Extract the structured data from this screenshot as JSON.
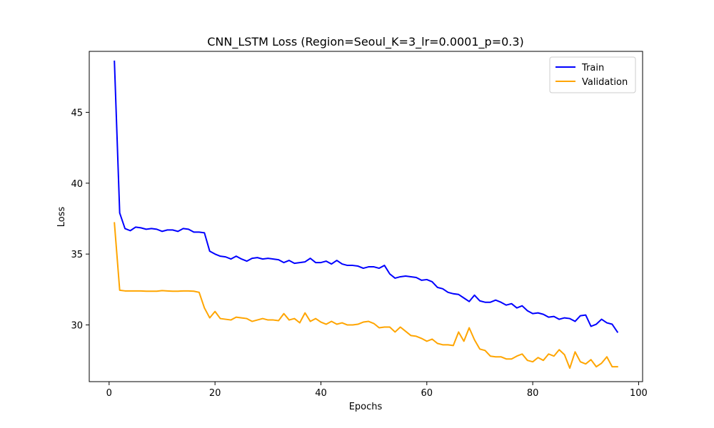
{
  "chart_data": {
    "type": "line",
    "title": "CNN_LSTM Loss (Region=Seoul_K=3_lr=0.0001_p=0.3)",
    "xlabel": "Epochs",
    "ylabel": "Loss",
    "xlim": [
      -3.75,
      100.75
    ],
    "ylim": [
      26.0,
      49.3
    ],
    "xticks": [
      0,
      20,
      40,
      60,
      80,
      100
    ],
    "yticks": [
      30,
      35,
      40,
      45
    ],
    "grid": false,
    "legend_position": "top-right",
    "x": [
      1,
      2,
      3,
      4,
      5,
      6,
      7,
      8,
      9,
      10,
      11,
      12,
      13,
      14,
      15,
      16,
      17,
      18,
      19,
      20,
      21,
      22,
      23,
      24,
      25,
      26,
      27,
      28,
      29,
      30,
      31,
      32,
      33,
      34,
      35,
      36,
      37,
      38,
      39,
      40,
      41,
      42,
      43,
      44,
      45,
      46,
      47,
      48,
      49,
      50,
      51,
      52,
      53,
      54,
      55,
      56,
      57,
      58,
      59,
      60,
      61,
      62,
      63,
      64,
      65,
      66,
      67,
      68,
      69,
      70,
      71,
      72,
      73,
      74,
      75,
      76,
      77,
      78,
      79,
      80,
      81,
      82,
      83,
      84,
      85,
      86,
      87,
      88,
      89,
      90,
      91,
      92,
      93,
      94,
      95,
      96
    ],
    "series": [
      {
        "name": "Train",
        "color": "#0000ff",
        "values": [
          48.6,
          37.9,
          36.8,
          36.65,
          36.9,
          36.85,
          36.75,
          36.8,
          36.75,
          36.6,
          36.7,
          36.7,
          36.6,
          36.8,
          36.75,
          36.55,
          36.55,
          36.5,
          35.2,
          35.0,
          34.85,
          34.8,
          34.65,
          34.85,
          34.65,
          34.5,
          34.7,
          34.75,
          34.65,
          34.7,
          34.65,
          34.6,
          34.4,
          34.55,
          34.35,
          34.4,
          34.45,
          34.7,
          34.4,
          34.4,
          34.5,
          34.3,
          34.55,
          34.3,
          34.2,
          34.2,
          34.15,
          34.0,
          34.1,
          34.1,
          34.0,
          34.2,
          33.6,
          33.3,
          33.4,
          33.45,
          33.4,
          33.35,
          33.15,
          33.2,
          33.05,
          32.65,
          32.55,
          32.3,
          32.2,
          32.15,
          31.9,
          31.65,
          32.1,
          31.7,
          31.6,
          31.6,
          31.75,
          31.6,
          31.4,
          31.5,
          31.2,
          31.35,
          31.0,
          30.8,
          30.85,
          30.75,
          30.55,
          30.6,
          30.4,
          30.5,
          30.45,
          30.25,
          30.65,
          30.7,
          29.9,
          30.05,
          30.4,
          30.15,
          30.05,
          29.5
        ]
      },
      {
        "name": "Validation",
        "color": "#ffa500",
        "values": [
          37.2,
          32.45,
          32.4,
          32.4,
          32.4,
          32.4,
          32.38,
          32.38,
          32.38,
          32.42,
          32.4,
          32.38,
          32.38,
          32.4,
          32.4,
          32.38,
          32.3,
          31.2,
          30.5,
          30.95,
          30.45,
          30.4,
          30.35,
          30.55,
          30.5,
          30.45,
          30.25,
          30.35,
          30.45,
          30.35,
          30.35,
          30.3,
          30.8,
          30.35,
          30.45,
          30.15,
          30.85,
          30.25,
          30.45,
          30.2,
          30.05,
          30.25,
          30.05,
          30.15,
          30.0,
          30.0,
          30.05,
          30.2,
          30.25,
          30.1,
          29.8,
          29.85,
          29.85,
          29.5,
          29.85,
          29.55,
          29.25,
          29.2,
          29.05,
          28.85,
          29.0,
          28.7,
          28.6,
          28.6,
          28.55,
          29.5,
          28.85,
          29.8,
          28.95,
          28.3,
          28.2,
          27.8,
          27.75,
          27.75,
          27.6,
          27.6,
          27.8,
          27.95,
          27.5,
          27.4,
          27.7,
          27.5,
          27.95,
          27.8,
          28.25,
          27.9,
          26.95,
          28.1,
          27.4,
          27.25,
          27.55,
          27.05,
          27.3,
          27.75,
          27.05,
          27.05
        ]
      }
    ]
  }
}
